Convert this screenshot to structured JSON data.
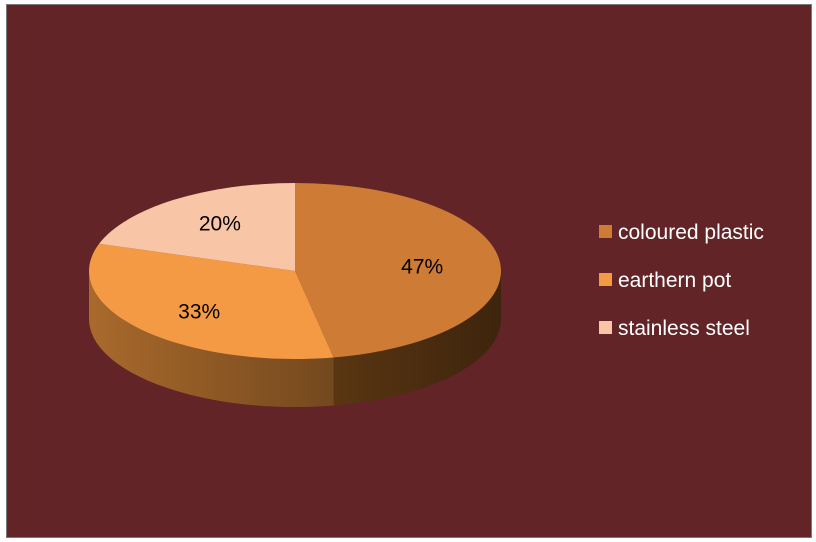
{
  "chart_data": {
    "type": "pie",
    "title": "",
    "categories": [
      "coloured plastic",
      "earthern pot",
      "stainless steel"
    ],
    "values": [
      47,
      33,
      20
    ],
    "labels": [
      "47%",
      "33%",
      "20%"
    ],
    "colors": [
      "#cd7b35",
      "#f59a44",
      "#f8c6a7"
    ],
    "side_colors": [
      "#5e3813",
      "#b26f2e",
      "#c49a80"
    ],
    "background": "#622426",
    "style": "3d",
    "legend": {
      "position": "right",
      "items": [
        "coloured plastic",
        "earthern pot",
        "stainless steel"
      ]
    }
  }
}
